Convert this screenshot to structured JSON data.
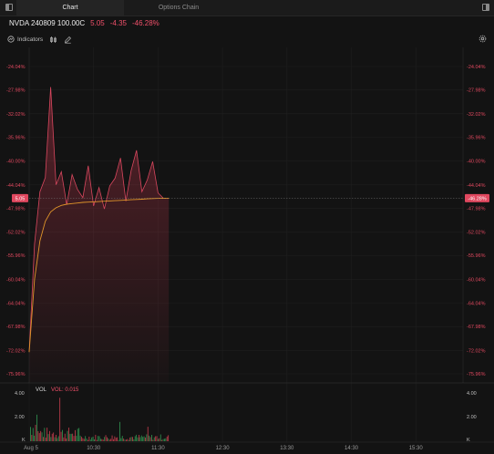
{
  "tabs": [
    {
      "label": "Chart",
      "active": true
    },
    {
      "label": "Options Chain",
      "active": false
    }
  ],
  "quote": {
    "symbol": "NVDA 240809 100.00C",
    "last": "5.05",
    "change": "-4.35",
    "change_pct": "-46.28%"
  },
  "toolbar": {
    "indicators_label": "Indicators",
    "icons": [
      "chart-style-icon",
      "draw-icon",
      "settings-icon"
    ]
  },
  "colors": {
    "accent_red": "#e0485f",
    "avg_line": "#e0952a",
    "vol_up": "#2f8a4c",
    "vol_down": "#b63a48",
    "bg": "#131313"
  },
  "axis": {
    "y_labels": [
      "-24.04%",
      "-27.98%",
      "-32.02%",
      "-35.96%",
      "-40.00%",
      "-44.04%",
      "-47.98%",
      "-52.02%",
      "-55.96%",
      "-60.04%",
      "-64.04%",
      "-67.98%",
      "-72.02%",
      "-75.96%"
    ],
    "left_current": "5.05",
    "right_current": "-46.28%",
    "x_labels": [
      "Aug 5",
      "10:30",
      "11:30",
      "12:30",
      "13:30",
      "14:30",
      "15:30"
    ],
    "vol_labels": [
      "4.00",
      "2.00",
      "K"
    ]
  },
  "volume": {
    "label": "VOL",
    "value_label": "VOL: 0.015"
  },
  "chart_data": {
    "type": "line",
    "x": [
      "09:30",
      "09:35",
      "09:40",
      "09:45",
      "09:50",
      "09:55",
      "10:00",
      "10:05",
      "10:10",
      "10:15",
      "10:20",
      "10:25",
      "10:30",
      "10:35",
      "10:40",
      "10:45",
      "10:50",
      "10:55",
      "11:00",
      "11:05",
      "11:10",
      "11:15",
      "11:20",
      "11:25",
      "11:30",
      "11:35",
      "11:40"
    ],
    "series": [
      {
        "values": [
          -72.3,
          -54.0,
          -45.2,
          -42.8,
          -27.5,
          -44.0,
          -41.8,
          -47.4,
          -42.3,
          -44.8,
          -46.2,
          -40.8,
          -47.6,
          -44.5,
          -48.1,
          -44.2,
          -42.9,
          -39.5,
          -46.8,
          -41.6,
          -38.2,
          -45.2,
          -43.2,
          -40.1,
          -45.4,
          -46.3,
          -46.28
        ]
      },
      {
        "values": [
          -72.3,
          -60.0,
          -53.5,
          -50.2,
          -48.6,
          -47.9,
          -47.5,
          -47.3,
          -47.2,
          -47.1,
          -47.0,
          -46.95,
          -46.9,
          -46.85,
          -46.8,
          -46.75,
          -46.7,
          -46.65,
          -46.6,
          -46.55,
          -46.5,
          -46.45,
          -46.4,
          -46.35,
          -46.32,
          -46.3,
          -46.28
        ]
      }
    ],
    "xlim": [
      "09:30",
      "15:55"
    ],
    "ylim": [
      -77.5,
      -23.0
    ],
    "volume_ylim": [
      0,
      4.5
    ],
    "grid": true
  }
}
